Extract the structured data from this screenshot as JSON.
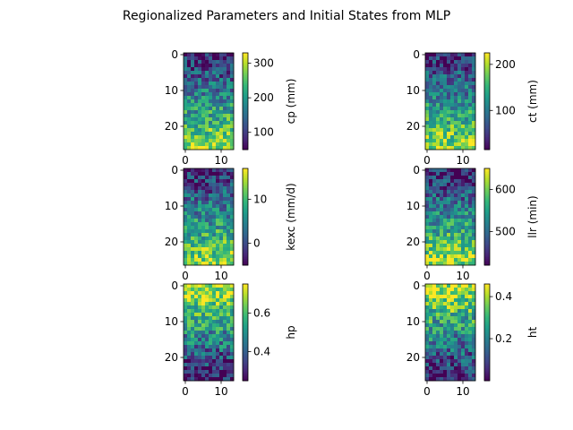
{
  "figure": {
    "title": "Regionalized Parameters and Initial States from MLP"
  },
  "chart_data": [
    {
      "type": "heatmap",
      "colorbar_label": "cp (mm)",
      "rows": 27,
      "cols": 14,
      "xticks": [
        0,
        10
      ],
      "yticks": [
        0,
        10,
        20
      ],
      "vmin": 50,
      "vmax": 330,
      "cbar_ticks": [
        100,
        200,
        300
      ],
      "colormap": "viridis",
      "pattern": "low-top-high-bottom"
    },
    {
      "type": "heatmap",
      "colorbar_label": "ct (mm)",
      "rows": 27,
      "cols": 14,
      "xticks": [
        0,
        10
      ],
      "yticks": [
        0,
        10,
        20
      ],
      "vmin": 15,
      "vmax": 225,
      "cbar_ticks": [
        100,
        200
      ],
      "colormap": "viridis",
      "pattern": "low-top-high-bottom"
    },
    {
      "type": "heatmap",
      "colorbar_label": "kexc (mm/d)",
      "rows": 27,
      "cols": 14,
      "xticks": [
        0,
        10
      ],
      "yticks": [
        0,
        10,
        20
      ],
      "vmin": -5,
      "vmax": 17,
      "cbar_ticks": [
        0,
        10
      ],
      "colormap": "viridis",
      "pattern": "low-top-high-bottom"
    },
    {
      "type": "heatmap",
      "colorbar_label": "llr (min)",
      "rows": 27,
      "cols": 14,
      "xticks": [
        0,
        10
      ],
      "yticks": [
        0,
        10,
        20
      ],
      "vmin": 420,
      "vmax": 650,
      "cbar_ticks": [
        500,
        600
      ],
      "colormap": "viridis",
      "pattern": "low-top-high-bottom"
    },
    {
      "type": "heatmap",
      "colorbar_label": "hp",
      "rows": 27,
      "cols": 14,
      "xticks": [
        0,
        10
      ],
      "yticks": [
        0,
        10,
        20
      ],
      "vmin": 0.25,
      "vmax": 0.75,
      "cbar_ticks": [
        0.4,
        0.6
      ],
      "colormap": "viridis",
      "pattern": "high-top-low-bottom"
    },
    {
      "type": "heatmap",
      "colorbar_label": "ht",
      "rows": 27,
      "cols": 14,
      "xticks": [
        0,
        10
      ],
      "yticks": [
        0,
        10,
        20
      ],
      "vmin": 0.0,
      "vmax": 0.46,
      "cbar_ticks": [
        0.2,
        0.4
      ],
      "colormap": "viridis",
      "pattern": "high-top-low-bottom"
    }
  ]
}
